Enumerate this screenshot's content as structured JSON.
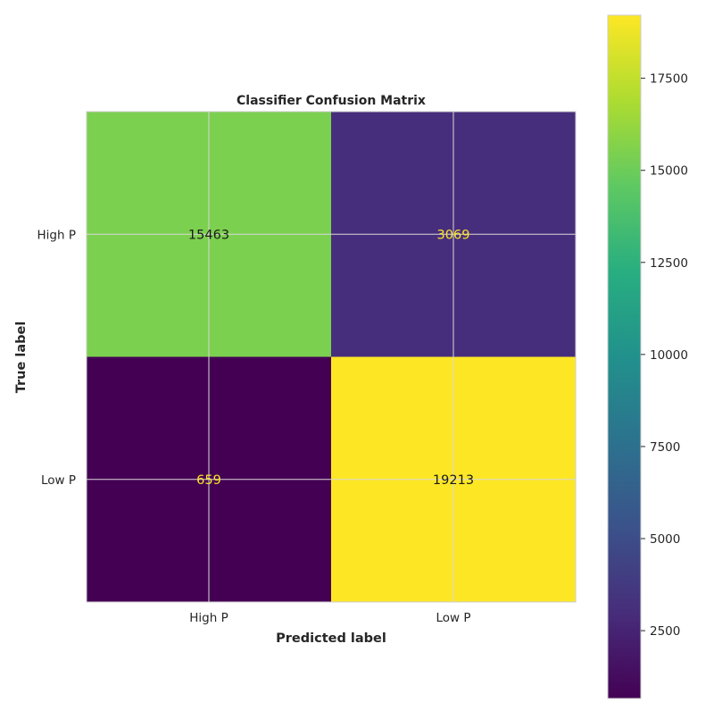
{
  "chart_data": {
    "type": "heatmap",
    "title": "Classifier Confusion Matrix",
    "xlabel": "Predicted label",
    "ylabel": "True label",
    "x_categories": [
      "High P",
      "Low P"
    ],
    "y_categories": [
      "High P",
      "Low P"
    ],
    "values": [
      [
        15463,
        3069
      ],
      [
        659,
        19213
      ]
    ],
    "colormap": "viridis",
    "colorbar": {
      "min": 659,
      "max": 19213,
      "ticks": [
        2500,
        5000,
        7500,
        10000,
        12500,
        15000,
        17500
      ]
    },
    "grid": true
  }
}
